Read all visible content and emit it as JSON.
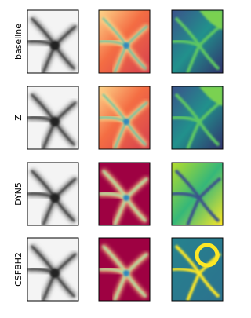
{
  "rows": [
    {
      "label": "baseline"
    },
    {
      "label": "Z"
    },
    {
      "label": "DYN5"
    },
    {
      "label": "CSFBH2"
    }
  ]
}
